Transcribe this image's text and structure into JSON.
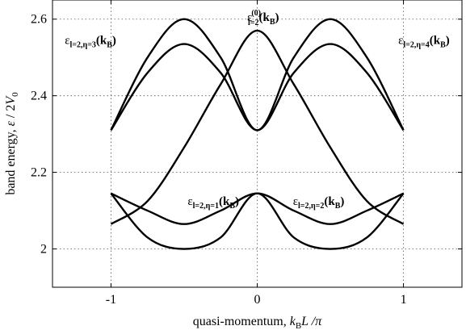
{
  "chart_data": {
    "type": "line",
    "title": "",
    "xlabel": "quasi-momentum, k_B L / π",
    "ylabel": "band energy, ε / 2 V_0",
    "xlim": [
      -1.4,
      1.4
    ],
    "ylim": [
      1.9,
      2.65
    ],
    "xticks": [
      -1,
      0,
      1
    ],
    "yticks": [
      2,
      2.2,
      2.4,
      2.6
    ],
    "xtick_labels": [
      "-1",
      "0",
      "1"
    ],
    "ytick_labels": [
      "2",
      "2.2",
      "2.4",
      "2.6"
    ],
    "grid": true,
    "axis_labels": {
      "x_main": "quasi-momentum, ",
      "x_k": "k",
      "x_sub": "B",
      "x_rest": "L /",
      "x_pi": "π",
      "y_main": "band energy, ",
      "y_eps": "ε",
      "y_mid": " / 2",
      "y_V": "V",
      "y_sub": "0"
    },
    "series": [
      {
        "x": [
          -1,
          -0.75,
          -0.5,
          -0.25,
          0,
          0.25,
          0.5,
          0.75,
          1
        ],
        "y": [
          2.31,
          2.5,
          2.6,
          2.5,
          2.31,
          2.5,
          2.6,
          2.5,
          2.31
        ]
      },
      {
        "x": [
          -1,
          -0.75,
          -0.5,
          -0.25,
          0,
          0.25,
          0.5,
          0.75,
          1
        ],
        "y": [
          2.31,
          2.46,
          2.535,
          2.46,
          2.31,
          2.46,
          2.535,
          2.46,
          2.31
        ]
      },
      {
        "x": [
          -1,
          -0.75,
          -0.5,
          -0.25,
          0,
          0.25,
          0.5,
          0.75,
          1
        ],
        "y": [
          2.145,
          2.1,
          2.065,
          2.1,
          2.145,
          2.1,
          2.065,
          2.1,
          2.145
        ]
      },
      {
        "x": [
          -1,
          -0.75,
          -0.5,
          -0.25,
          0,
          0.25,
          0.5,
          0.75,
          1
        ],
        "y": [
          2.145,
          2.03,
          2.0,
          2.03,
          2.145,
          2.03,
          2.0,
          2.03,
          2.145
        ]
      },
      {
        "x": [
          -1,
          -0.75,
          -0.5,
          -0.25,
          0,
          0.25,
          0.5,
          0.75,
          1
        ],
        "y": [
          2.065,
          2.125,
          2.265,
          2.43,
          2.57,
          2.43,
          2.265,
          2.125,
          2.065
        ]
      }
    ],
    "annotations": [
      {
        "main": "ε",
        "sub": "l=2,η=3",
        "arg": "(k",
        "argsub": "B",
        "close": ")",
        "x": -1.14,
        "y": 2.535,
        "anchor": "middle"
      },
      {
        "main": "ε",
        "sup": "(0)",
        "sub": "l=2",
        "arg": "(k",
        "argsub": "B",
        "close": ")",
        "x": 0.04,
        "y": 2.595,
        "anchor": "middle"
      },
      {
        "main": "ε",
        "sub": "l=2,η=4",
        "arg": "(k",
        "argsub": "B",
        "close": ")",
        "x": 1.14,
        "y": 2.535,
        "anchor": "middle"
      },
      {
        "main": "ε",
        "sub": "l=2,η=1",
        "arg": "(k",
        "argsub": "B",
        "close": ")",
        "x": -0.3,
        "y": 2.115,
        "anchor": "middle"
      },
      {
        "main": "ε",
        "sub": "l=2,η=2",
        "arg": "(k",
        "argsub": "B",
        "close": ")",
        "x": 0.42,
        "y": 2.115,
        "anchor": "middle"
      }
    ]
  }
}
